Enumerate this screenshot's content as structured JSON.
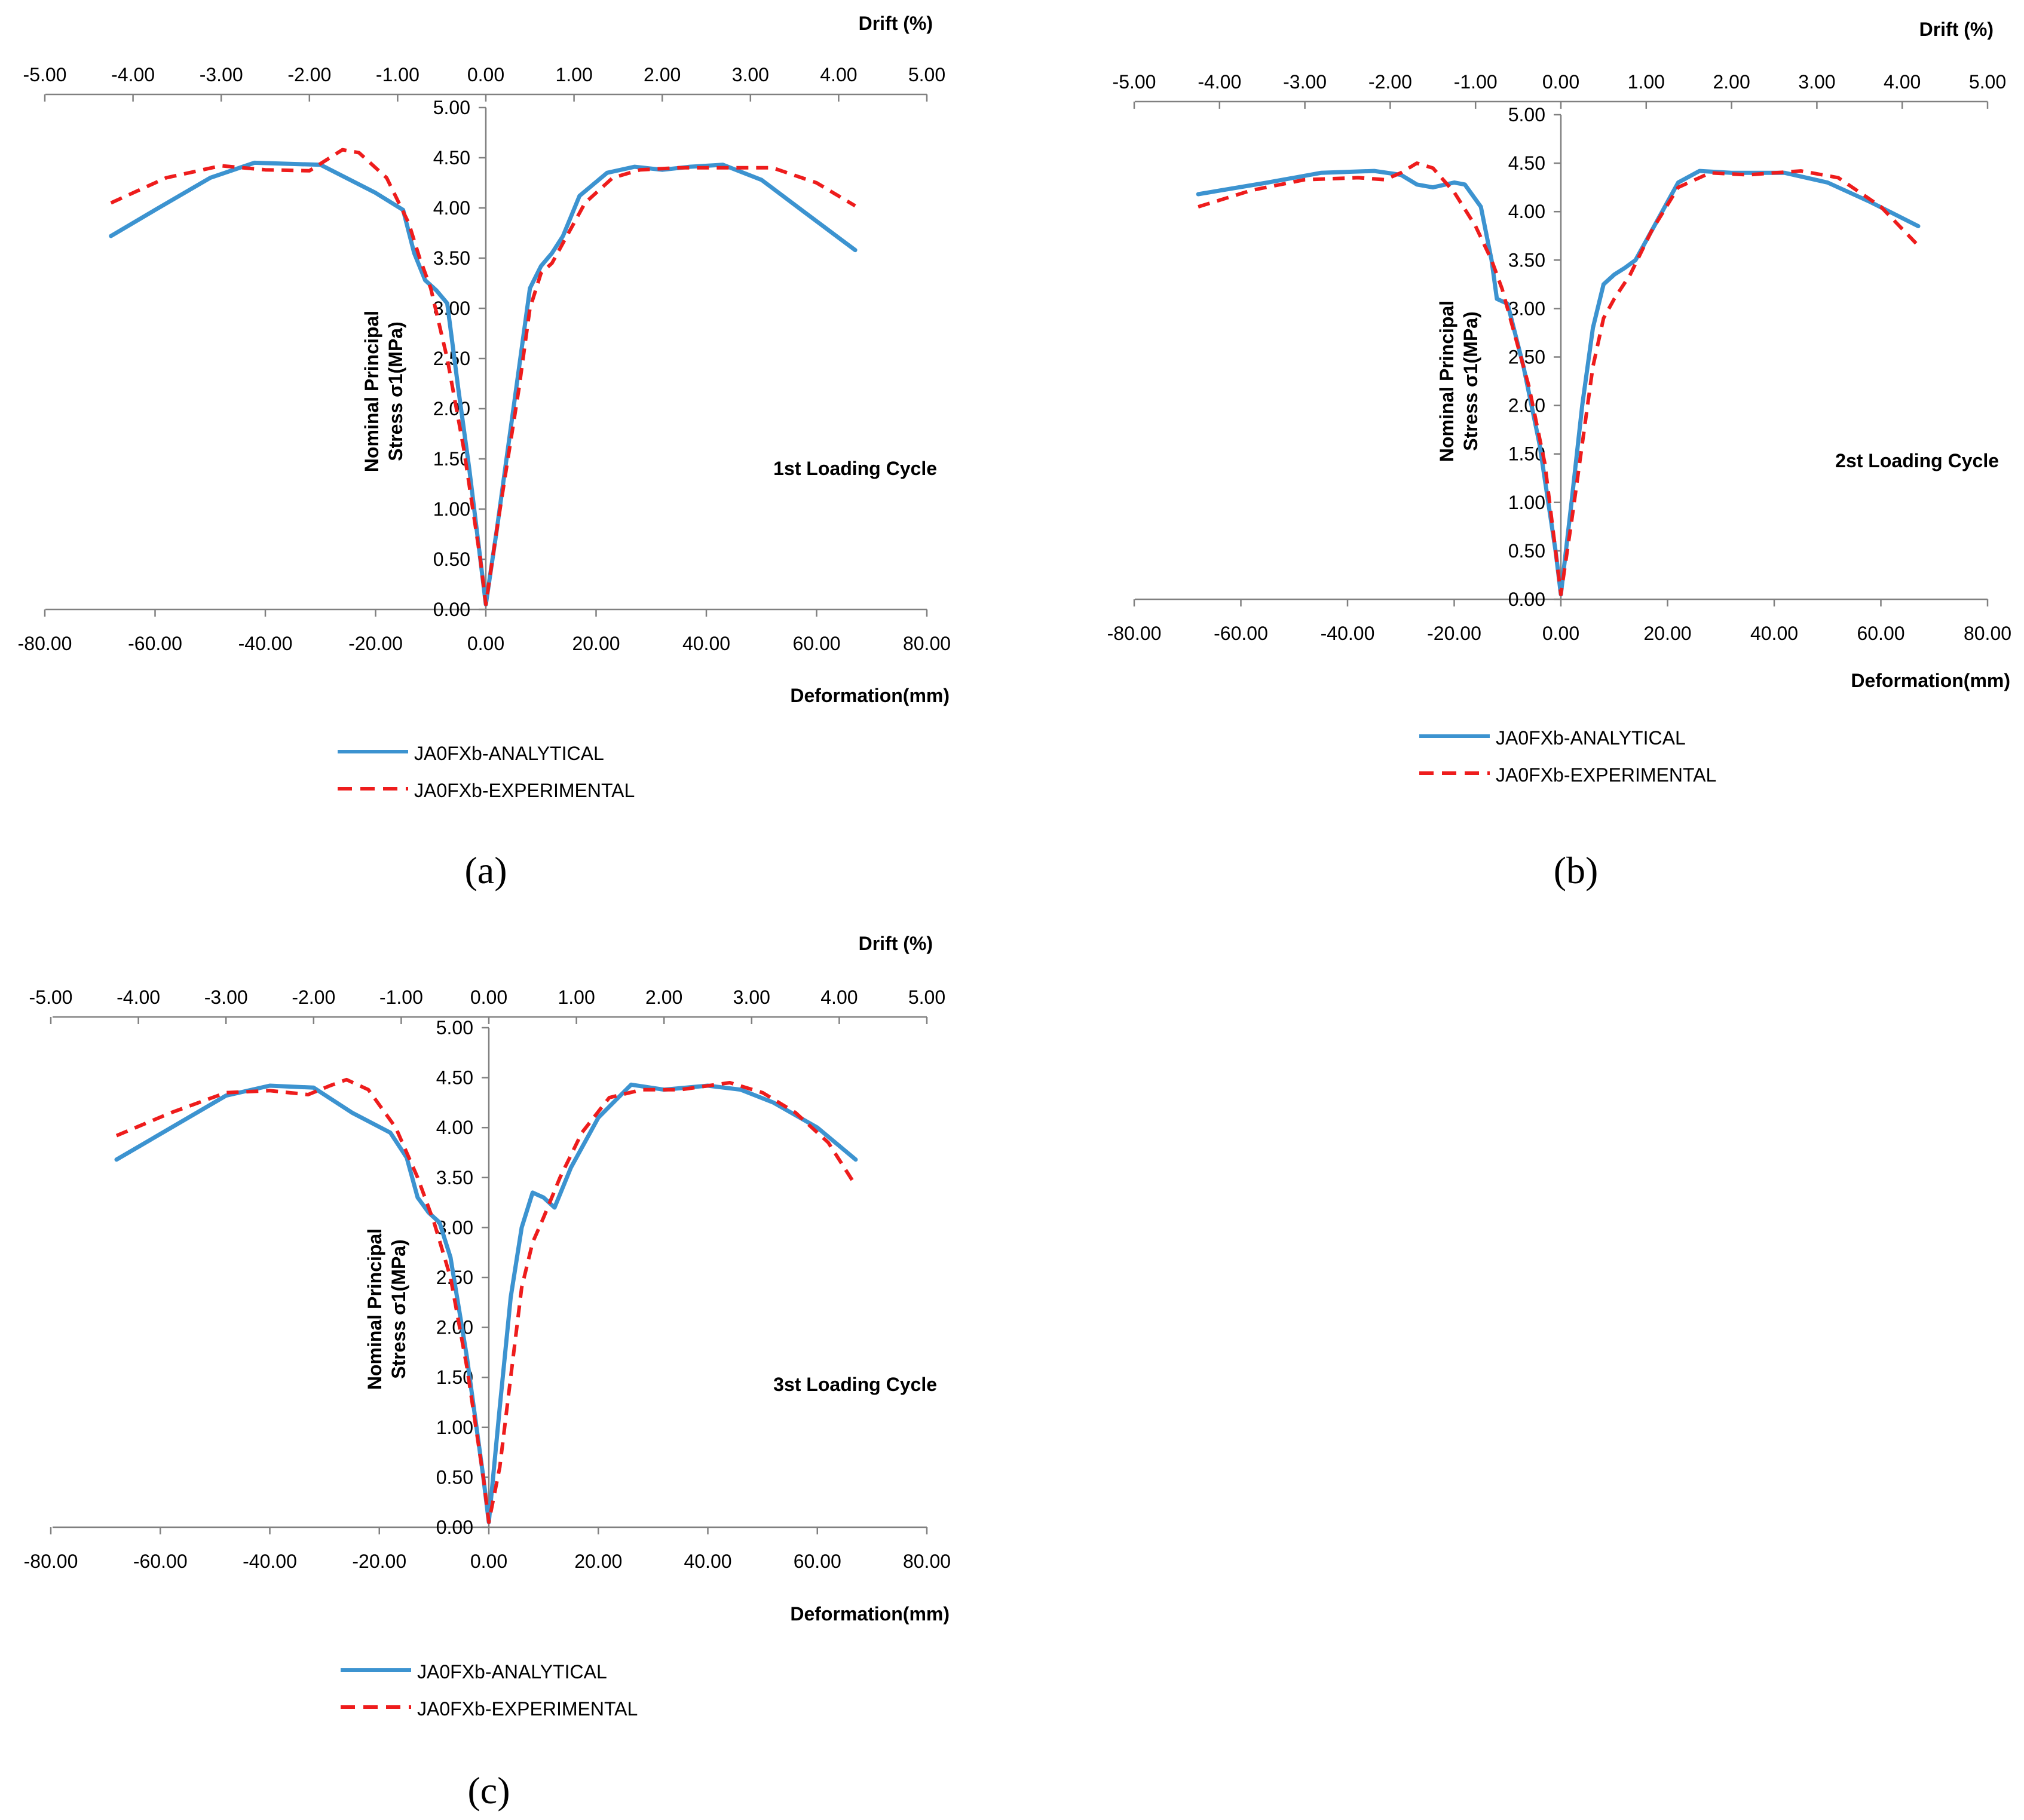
{
  "figure": {
    "captions": [
      "(a)",
      "(b)",
      "(c)"
    ]
  },
  "colors": {
    "analytical": "#3c93d0",
    "experimental": "#ee1c1c",
    "axis": "#808080"
  },
  "chart_data": [
    {
      "type": "line",
      "panel": "(a)",
      "title": "1st Loading Cycle",
      "xlabel": "Deformation(mm)",
      "x2label": "Drift (%)",
      "ylabel": [
        "Nominal Principal",
        "Stress σ1(MPa)"
      ],
      "xlim": [
        -80,
        80
      ],
      "x2lim": [
        -5,
        5
      ],
      "ylim": [
        0,
        5
      ],
      "x_ticks": [
        "-80.00",
        "-60.00",
        "-40.00",
        "-20.00",
        "0.00",
        "20.00",
        "40.00",
        "60.00",
        "80.00"
      ],
      "x2_ticks": [
        "-5.00",
        "-4.00",
        "-3.00",
        "-2.00",
        "-1.00",
        "0.00",
        "1.00",
        "2.00",
        "3.00",
        "4.00",
        "5.00"
      ],
      "y_ticks": [
        "0.00",
        "0.50",
        "1.00",
        "1.50",
        "2.00",
        "2.50",
        "3.00",
        "3.50",
        "4.00",
        "4.50",
        "5.00"
      ],
      "series": [
        {
          "name": "JA0FXb-ANALYTICAL",
          "style": "solid",
          "x": [
            -68,
            -60,
            -50,
            -42,
            -30,
            -20,
            -15,
            -13,
            -11,
            -9,
            -7,
            -5,
            -3,
            -1,
            0,
            2,
            4,
            6,
            8,
            10,
            12,
            14,
            17,
            22,
            27,
            32,
            37,
            43,
            50,
            58,
            67
          ],
          "y": [
            3.72,
            3.98,
            4.3,
            4.45,
            4.43,
            4.15,
            3.98,
            3.55,
            3.28,
            3.18,
            3.05,
            2.2,
            1.4,
            0.5,
            0.05,
            0.8,
            1.6,
            2.4,
            3.2,
            3.42,
            3.55,
            3.72,
            4.12,
            4.35,
            4.41,
            4.38,
            4.41,
            4.43,
            4.28,
            3.95,
            3.58
          ]
        },
        {
          "name": "JA0FXb-EXPERIMENTAL",
          "style": "dashed",
          "x": [
            -68,
            -58,
            -48,
            -40,
            -32,
            -26,
            -23,
            -18,
            -14,
            -12,
            -10,
            -7,
            -4,
            -1,
            0,
            2,
            4,
            6,
            8,
            10,
            12,
            14,
            18,
            23,
            28,
            35,
            45,
            52,
            60,
            67
          ],
          "y": [
            4.05,
            4.3,
            4.42,
            4.38,
            4.37,
            4.58,
            4.55,
            4.3,
            3.85,
            3.5,
            3.2,
            2.5,
            1.6,
            0.5,
            0.05,
            0.8,
            1.5,
            2.2,
            3.0,
            3.35,
            3.45,
            3.65,
            4.05,
            4.3,
            4.38,
            4.4,
            4.4,
            4.4,
            4.25,
            4.02
          ]
        }
      ]
    },
    {
      "type": "line",
      "panel": "(b)",
      "title": "2st Loading Cycle",
      "xlabel": "Deformation(mm)",
      "x2label": "Drift (%)",
      "ylabel": [
        "Nominal Principal",
        "Stress σ1(MPa)"
      ],
      "xlim": [
        -80,
        80
      ],
      "x2lim": [
        -5,
        5
      ],
      "ylim": [
        0,
        5
      ],
      "x_ticks": [
        "-80.00",
        "-60.00",
        "-40.00",
        "-20.00",
        "0.00",
        "20.00",
        "40.00",
        "60.00",
        "80.00"
      ],
      "x2_ticks": [
        "-5.00",
        "-4.00",
        "-3.00",
        "-2.00",
        "-1.00",
        "0.00",
        "1.00",
        "2.00",
        "3.00",
        "4.00",
        "5.00"
      ],
      "y_ticks": [
        "0.00",
        "0.50",
        "1.00",
        "1.50",
        "2.00",
        "2.50",
        "3.00",
        "3.50",
        "4.00",
        "4.50",
        "5.00"
      ],
      "series": [
        {
          "name": "JA0FXb-ANALYTICAL",
          "style": "solid",
          "x": [
            -68,
            -55,
            -45,
            -35,
            -30,
            -27,
            -24,
            -20,
            -18,
            -15,
            -13,
            -12,
            -10,
            -7,
            -4,
            -1,
            0,
            2,
            4,
            6,
            8,
            10,
            12,
            14,
            17,
            22,
            26,
            32,
            42,
            50,
            58,
            67
          ],
          "y": [
            4.18,
            4.3,
            4.4,
            4.42,
            4.38,
            4.28,
            4.25,
            4.3,
            4.28,
            4.05,
            3.5,
            3.1,
            3.05,
            2.4,
            1.6,
            0.5,
            0.05,
            1.0,
            2.0,
            2.8,
            3.25,
            3.35,
            3.42,
            3.5,
            3.8,
            4.3,
            4.42,
            4.4,
            4.4,
            4.3,
            4.1,
            3.85
          ]
        },
        {
          "name": "JA0FXb-EXPERIMENTAL",
          "style": "dashed",
          "x": [
            -68,
            -58,
            -48,
            -38,
            -33,
            -30,
            -27,
            -24,
            -20,
            -16,
            -13,
            -11,
            -9,
            -6,
            -3,
            -1,
            0,
            2,
            4,
            6,
            8,
            10,
            13,
            17,
            22,
            28,
            35,
            45,
            52,
            60,
            67
          ],
          "y": [
            4.05,
            4.22,
            4.33,
            4.35,
            4.33,
            4.4,
            4.5,
            4.45,
            4.2,
            3.85,
            3.5,
            3.2,
            2.8,
            2.2,
            1.4,
            0.5,
            0.05,
            0.8,
            1.6,
            2.4,
            2.9,
            3.1,
            3.35,
            3.8,
            4.25,
            4.4,
            4.38,
            4.42,
            4.35,
            4.05,
            3.65
          ]
        }
      ]
    },
    {
      "type": "line",
      "panel": "(c)",
      "title": "3st Loading Cycle",
      "xlabel": "Deformation(mm)",
      "x2label": "Drift (%)",
      "ylabel": [
        "Nominal Principal",
        "Stress σ1(MPa)"
      ],
      "xlim": [
        -80,
        80
      ],
      "x2lim": [
        -5,
        5
      ],
      "ylim": [
        0,
        5
      ],
      "x_ticks": [
        "-80.00",
        "-60.00",
        "-40.00",
        "-20.00",
        "0.00",
        "20.00",
        "40.00",
        "60.00",
        "80.00"
      ],
      "x2_ticks": [
        "-5.00",
        "-4.00",
        "-3.00",
        "-2.00",
        "-1.00",
        "0.00",
        "1.00",
        "2.00",
        "3.00",
        "4.00",
        "5.00"
      ],
      "y_ticks": [
        "0.00",
        "0.50",
        "1.00",
        "1.50",
        "2.00",
        "2.50",
        "3.00",
        "3.50",
        "4.00",
        "4.50",
        "5.00"
      ],
      "series": [
        {
          "name": "JA0FXb-ANALYTICAL",
          "style": "solid",
          "x": [
            -68,
            -58,
            -48,
            -40,
            -32,
            -25,
            -18,
            -15,
            -13,
            -11,
            -9,
            -7,
            -4,
            -1,
            0,
            2,
            4,
            6,
            8,
            10,
            12,
            15,
            20,
            26,
            32,
            40,
            46,
            52,
            60,
            67
          ],
          "y": [
            3.68,
            4.0,
            4.32,
            4.42,
            4.4,
            4.15,
            3.95,
            3.7,
            3.3,
            3.15,
            3.05,
            2.7,
            1.7,
            0.5,
            0.05,
            1.2,
            2.3,
            3.0,
            3.35,
            3.3,
            3.2,
            3.6,
            4.1,
            4.43,
            4.38,
            4.42,
            4.38,
            4.25,
            4.0,
            3.68
          ]
        },
        {
          "name": "JA0FXb-EXPERIMENTAL",
          "style": "dashed",
          "x": [
            -68,
            -58,
            -48,
            -40,
            -33,
            -29,
            -26,
            -22,
            -17,
            -13,
            -10,
            -7,
            -4,
            -1,
            0,
            2,
            4,
            6,
            8,
            10,
            13,
            17,
            22,
            28,
            35,
            44,
            50,
            56,
            62,
            67
          ],
          "y": [
            3.92,
            4.15,
            4.35,
            4.37,
            4.33,
            4.42,
            4.48,
            4.38,
            4.0,
            3.5,
            3.05,
            2.5,
            1.6,
            0.5,
            0.05,
            0.6,
            1.5,
            2.4,
            2.85,
            3.1,
            3.5,
            3.95,
            4.3,
            4.38,
            4.38,
            4.45,
            4.35,
            4.15,
            3.85,
            3.42
          ]
        }
      ]
    }
  ]
}
